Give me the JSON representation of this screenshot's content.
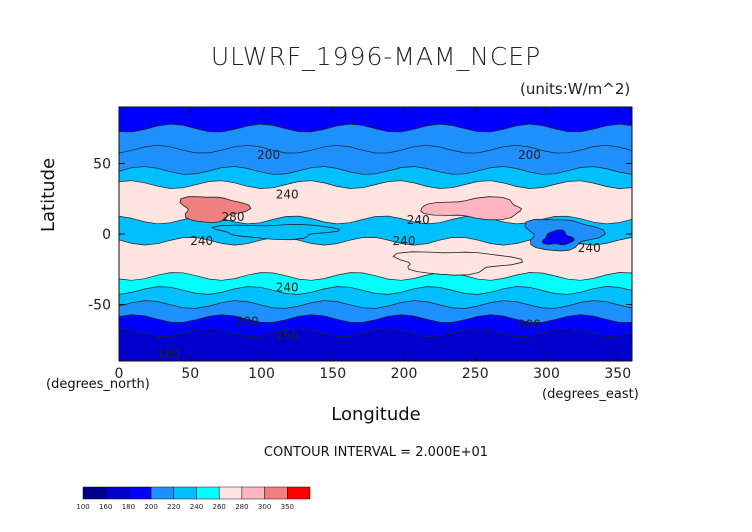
{
  "chart_data": {
    "type": "heatmap",
    "title": "ULWRF_1996-MAM_NCEP",
    "units_label": "(units:W/m^2)",
    "xlabel": "Longitude",
    "ylabel": "Latitude",
    "x_units_label": "(degrees_east)",
    "y_units_label": "(degrees_north)",
    "xlim": [
      0,
      360
    ],
    "ylim": [
      -90,
      90
    ],
    "x_ticks": [
      "0",
      "50",
      "100",
      "150",
      "200",
      "250",
      "300",
      "350"
    ],
    "y_ticks": [
      "-50",
      "0",
      "50"
    ],
    "contour_interval_text": "CONTOUR INTERVAL = 2.000E+01",
    "colorbar_levels": [
      "100",
      "160",
      "180",
      "200",
      "220",
      "240",
      "260",
      "280",
      "300",
      "350"
    ],
    "colorbar_colors": [
      "#00008b",
      "#0000cd",
      "#0000ff",
      "#1e90ff",
      "#00bfff",
      "#00ffff",
      "#ffe4e1",
      "#ffb6c1",
      "#f08080",
      "#ff0000"
    ],
    "contour_labels": [
      {
        "text": "200",
        "lon": 105,
        "lat": 56
      },
      {
        "text": "200",
        "lon": 288,
        "lat": 56
      },
      {
        "text": "240",
        "lon": 118,
        "lat": 28
      },
      {
        "text": "280",
        "lon": 80,
        "lat": 12
      },
      {
        "text": "240",
        "lon": 210,
        "lat": 10
      },
      {
        "text": "240",
        "lon": 200,
        "lat": -5
      },
      {
        "text": "240",
        "lon": 58,
        "lat": -5
      },
      {
        "text": "240",
        "lon": 330,
        "lat": -10
      },
      {
        "text": "240",
        "lon": 118,
        "lat": -38
      },
      {
        "text": "200",
        "lon": 90,
        "lat": -62
      },
      {
        "text": "200",
        "lon": 288,
        "lat": -64
      },
      {
        "text": "160",
        "lon": 118,
        "lat": -72
      },
      {
        "text": "180",
        "lon": 35,
        "lat": -85
      }
    ],
    "bands": [
      {
        "lat_top": 90,
        "lat_bottom": 75,
        "value": 190
      },
      {
        "lat_top": 75,
        "lat_bottom": 60,
        "value": 200
      },
      {
        "lat_top": 60,
        "lat_bottom": 45,
        "value": 210
      },
      {
        "lat_top": 45,
        "lat_bottom": 35,
        "value": 230
      },
      {
        "lat_top": 35,
        "lat_bottom": 10,
        "value": 270
      },
      {
        "lat_top": 10,
        "lat_bottom": -5,
        "value": 235
      },
      {
        "lat_top": -5,
        "lat_bottom": -30,
        "value": 265
      },
      {
        "lat_top": -30,
        "lat_bottom": -40,
        "value": 250
      },
      {
        "lat_top": -40,
        "lat_bottom": -50,
        "value": 235
      },
      {
        "lat_top": -50,
        "lat_bottom": -60,
        "value": 215
      },
      {
        "lat_top": -60,
        "lat_bottom": -70,
        "value": 195
      },
      {
        "lat_top": -70,
        "lat_bottom": -90,
        "value": 165
      }
    ],
    "features": [
      {
        "name": "warm-core-africa",
        "lon_center": 65,
        "lat_center": 18,
        "lon_half": 22,
        "lat_half": 9,
        "value": 310
      },
      {
        "name": "cold-pool-americas",
        "lon_center": 310,
        "lat_center": 0,
        "lon_half": 25,
        "lat_half": 11,
        "value": 205
      },
      {
        "name": "deep-cold-center",
        "lon_center": 308,
        "lat_center": -3,
        "lon_half": 10,
        "lat_half": 5,
        "value": 180
      },
      {
        "name": "indian-ocean-cool",
        "lon_center": 110,
        "lat_center": 2,
        "lon_half": 40,
        "lat_half": 5,
        "value": 225
      },
      {
        "name": "pacific-warm",
        "lon_center": 250,
        "lat_center": 18,
        "lon_half": 35,
        "lat_half": 7,
        "value": 280
      },
      {
        "name": "south-pacific-warm",
        "lon_center": 235,
        "lat_center": -20,
        "lon_half": 40,
        "lat_half": 8,
        "value": 275
      }
    ]
  }
}
